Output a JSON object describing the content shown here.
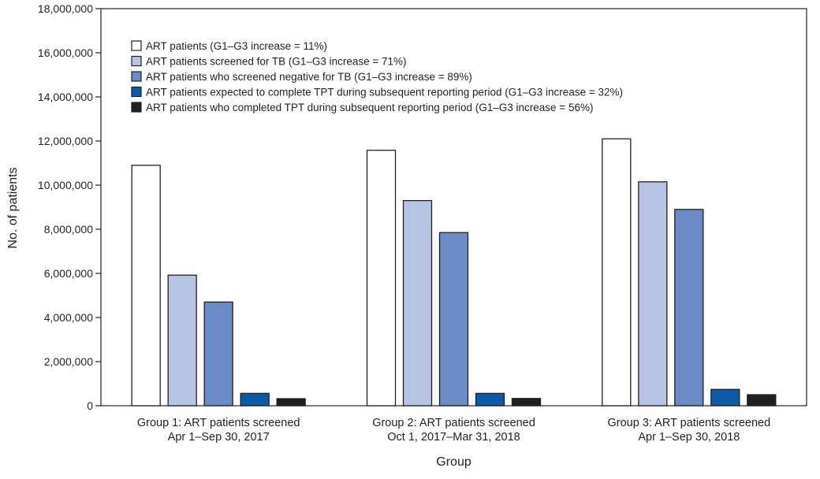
{
  "chart_data": {
    "type": "bar",
    "title": "",
    "xlabel": "Group",
    "ylabel": "No. of patients",
    "ylim": [
      0,
      18000000
    ],
    "yticks": [
      0,
      2000000,
      4000000,
      6000000,
      8000000,
      10000000,
      12000000,
      14000000,
      16000000,
      18000000
    ],
    "ytick_labels": [
      "0",
      "2,000,000",
      "4,000,000",
      "6,000,000",
      "8,000,000",
      "10,000,000",
      "12,000,000",
      "14,000,000",
      "16,000,000",
      "18,000,000"
    ],
    "grid": false,
    "legend_position": "top-left",
    "categories": [
      [
        "Group 1: ART patients screened",
        "Apr 1–Sep 30, 2017"
      ],
      [
        "Group 2: ART patients screened",
        "Oct 1, 2017–Mar 31, 2018"
      ],
      [
        "Group 3: ART patients screened",
        "Apr 1–Sep 30, 2018"
      ]
    ],
    "series": [
      {
        "name": "ART patients (G1–G3 increase = 11%)",
        "color": "#ffffff",
        "values": [
          10900000,
          11580000,
          12100000
        ]
      },
      {
        "name": "ART patients screened for TB (G1–G3 increase = 71%)",
        "color": "#b6c3e3",
        "values": [
          5920000,
          9300000,
          10150000
        ]
      },
      {
        "name": "ART patients who screened negative for TB (G1–G3 increase = 89%)",
        "color": "#6a8bc6",
        "values": [
          4700000,
          7850000,
          8900000
        ]
      },
      {
        "name": "ART patients expected to complete TPT during subsequent reporting period (G1–G3 increase = 32%)",
        "color": "#0b5aa8",
        "values": [
          560000,
          560000,
          740000
        ]
      },
      {
        "name": "ART patients who completed TPT during subsequent reporting period (G1–G3 increase = 56%)",
        "color": "#231f20",
        "values": [
          320000,
          330000,
          500000
        ]
      }
    ]
  }
}
